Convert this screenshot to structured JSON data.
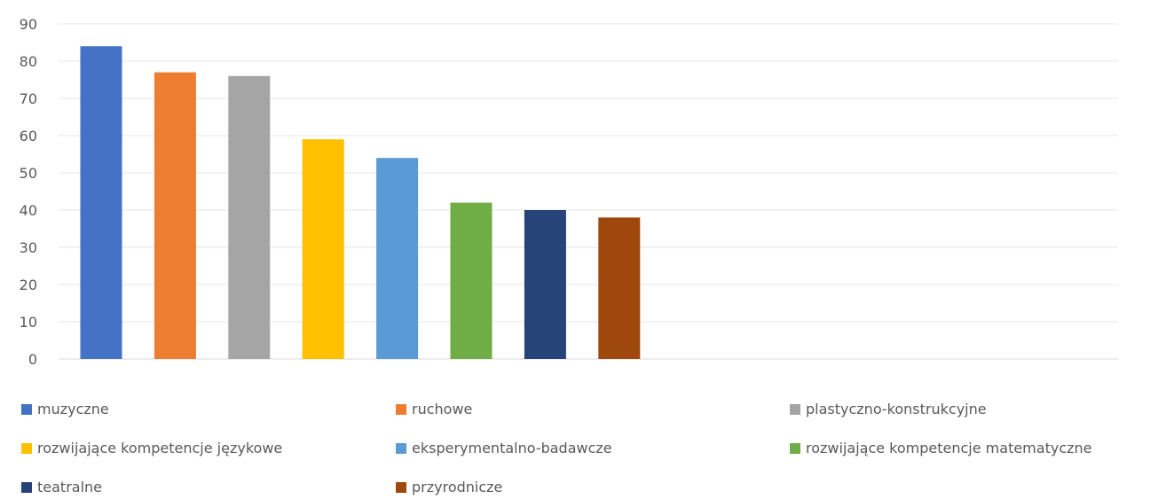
{
  "chart_data": {
    "type": "bar",
    "title": "",
    "xlabel": "",
    "ylabel": "",
    "ylim": [
      0,
      90
    ],
    "yticks": [
      0,
      10,
      20,
      30,
      40,
      50,
      60,
      70,
      80,
      90
    ],
    "grid": true,
    "legend_position": "bottom",
    "series": [
      {
        "name": "muzyczne",
        "value": 84,
        "color": "#4472C4"
      },
      {
        "name": "ruchowe",
        "value": 77,
        "color": "#ED7D31"
      },
      {
        "name": "plastyczno-konstrukcyjne",
        "value": 76,
        "color": "#A5A5A5"
      },
      {
        "name": "rozwijające kompetencje językowe",
        "value": 59,
        "color": "#FFC000"
      },
      {
        "name": "eksperymentalno-badawcze",
        "value": 54,
        "color": "#5B9BD5"
      },
      {
        "name": "rozwijające kompetencje matematyczne",
        "value": 42,
        "color": "#70AD47"
      },
      {
        "name": "teatralne",
        "value": 40,
        "color": "#264478"
      },
      {
        "name": "przyrodnicze",
        "value": 38,
        "color": "#9E480E"
      }
    ]
  }
}
